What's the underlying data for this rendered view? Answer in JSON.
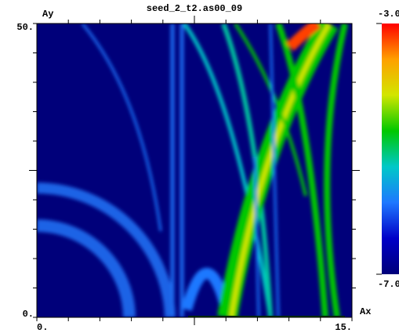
{
  "chart_data": {
    "type": "heatmap",
    "title": "seed_2_t2.as00_09",
    "x_label": "Ax",
    "y_label": "Ay",
    "xlim": [
      0,
      15
    ],
    "ylim": [
      0,
      50
    ],
    "xticks": [
      {
        "value": 0,
        "label": "0."
      },
      {
        "value": 15,
        "label": "15."
      }
    ],
    "yticks": [
      {
        "value": 0,
        "label": "0."
      },
      {
        "value": 50,
        "label": "50."
      }
    ],
    "xminor": [
      1.5,
      3,
      4.5,
      6,
      7.5,
      9,
      10.5,
      12,
      13.5
    ],
    "yminor": [
      5,
      10,
      15,
      20,
      25,
      30,
      35,
      40,
      45
    ],
    "clim": [
      -7,
      -3
    ],
    "cticks": [
      {
        "value": -7,
        "label": "-7.0"
      },
      {
        "value": -3,
        "label": "-3.0"
      }
    ],
    "colormap": [
      "#00007a",
      "#0000c8",
      "#1e78ff",
      "#00c8c8",
      "#00c800",
      "#d2e600",
      "#ffa000",
      "#ff0000"
    ]
  }
}
